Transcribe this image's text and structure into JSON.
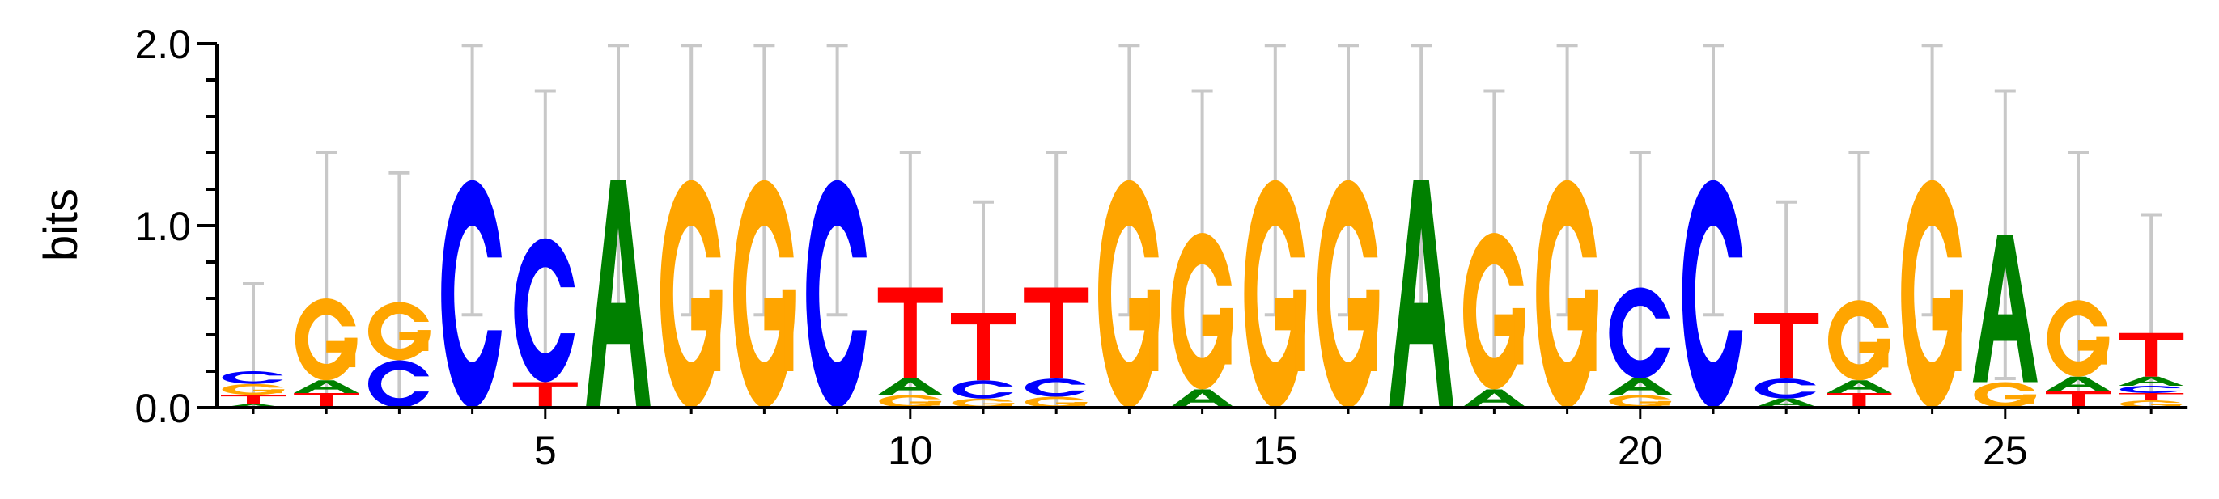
{
  "chart_data": {
    "type": "sequence_logo",
    "title": "",
    "xlabel": "",
    "ylabel": "bits",
    "ylim": [
      0,
      2.0
    ],
    "y_ticks": [
      "0.0",
      "1.0",
      "2.0"
    ],
    "x_ticks": [
      5,
      10,
      15,
      20,
      25
    ],
    "positions": [
      1,
      2,
      3,
      4,
      5,
      6,
      7,
      8,
      9,
      10,
      11,
      12,
      13,
      14,
      15,
      16,
      17,
      18,
      19,
      20,
      21,
      22,
      23,
      24,
      25,
      26,
      27
    ],
    "letter_colors": {
      "A": "#008000",
      "C": "#0000ff",
      "G": "#ffa500",
      "T": "#ff0000"
    },
    "errorbar_color": "#c8c8c8",
    "columns": [
      {
        "position": 1,
        "letters": [
          {
            "base": "A",
            "height": 0.02
          },
          {
            "base": "T",
            "height": 0.05
          },
          {
            "base": "G",
            "height": 0.06
          },
          {
            "base": "C",
            "height": 0.07
          }
        ],
        "error_top": 0.68
      },
      {
        "position": 2,
        "letters": [
          {
            "base": "T",
            "height": 0.08
          },
          {
            "base": "A",
            "height": 0.07
          },
          {
            "base": "G",
            "height": 0.45
          }
        ],
        "error_top": 1.4
      },
      {
        "position": 3,
        "letters": [
          {
            "base": "C",
            "height": 0.26
          },
          {
            "base": "G",
            "height": 0.32
          }
        ],
        "error_top": 1.29
      },
      {
        "position": 4,
        "letters": [
          {
            "base": "C",
            "height": 1.25
          }
        ],
        "error_top": 1.99
      },
      {
        "position": 5,
        "letters": [
          {
            "base": "T",
            "height": 0.14
          },
          {
            "base": "C",
            "height": 0.79
          }
        ],
        "error_top": 1.74
      },
      {
        "position": 6,
        "letters": [
          {
            "base": "A",
            "height": 1.25
          }
        ],
        "error_top": 1.99
      },
      {
        "position": 7,
        "letters": [
          {
            "base": "G",
            "height": 1.25
          }
        ],
        "error_top": 1.99
      },
      {
        "position": 8,
        "letters": [
          {
            "base": "G",
            "height": 1.25
          }
        ],
        "error_top": 1.99
      },
      {
        "position": 9,
        "letters": [
          {
            "base": "C",
            "height": 1.25
          }
        ],
        "error_top": 1.99
      },
      {
        "position": 10,
        "letters": [
          {
            "base": "G",
            "height": 0.07
          },
          {
            "base": "A",
            "height": 0.09
          },
          {
            "base": "T",
            "height": 0.5
          }
        ],
        "error_top": 1.4
      },
      {
        "position": 11,
        "letters": [
          {
            "base": "G",
            "height": 0.05
          },
          {
            "base": "C",
            "height": 0.1
          },
          {
            "base": "T",
            "height": 0.37
          }
        ],
        "error_top": 1.13
      },
      {
        "position": 12,
        "letters": [
          {
            "base": "G",
            "height": 0.06
          },
          {
            "base": "C",
            "height": 0.1
          },
          {
            "base": "T",
            "height": 0.5
          }
        ],
        "error_top": 1.4
      },
      {
        "position": 13,
        "letters": [
          {
            "base": "G",
            "height": 1.25
          }
        ],
        "error_top": 1.99
      },
      {
        "position": 14,
        "letters": [
          {
            "base": "A",
            "height": 0.1
          },
          {
            "base": "G",
            "height": 0.86
          }
        ],
        "error_top": 1.74
      },
      {
        "position": 15,
        "letters": [
          {
            "base": "G",
            "height": 1.25
          }
        ],
        "error_top": 1.99
      },
      {
        "position": 16,
        "letters": [
          {
            "base": "G",
            "height": 1.25
          }
        ],
        "error_top": 1.99
      },
      {
        "position": 17,
        "letters": [
          {
            "base": "A",
            "height": 1.25
          }
        ],
        "error_top": 1.99
      },
      {
        "position": 18,
        "letters": [
          {
            "base": "A",
            "height": 0.1
          },
          {
            "base": "G",
            "height": 0.86
          }
        ],
        "error_top": 1.74
      },
      {
        "position": 19,
        "letters": [
          {
            "base": "G",
            "height": 1.25
          }
        ],
        "error_top": 1.99
      },
      {
        "position": 20,
        "letters": [
          {
            "base": "G",
            "height": 0.07
          },
          {
            "base": "A",
            "height": 0.09
          },
          {
            "base": "C",
            "height": 0.5
          }
        ],
        "error_top": 1.4
      },
      {
        "position": 21,
        "letters": [
          {
            "base": "C",
            "height": 1.25
          }
        ],
        "error_top": 1.99
      },
      {
        "position": 22,
        "letters": [
          {
            "base": "A",
            "height": 0.05
          },
          {
            "base": "C",
            "height": 0.11
          },
          {
            "base": "T",
            "height": 0.36
          }
        ],
        "error_top": 1.13
      },
      {
        "position": 23,
        "letters": [
          {
            "base": "T",
            "height": 0.08
          },
          {
            "base": "A",
            "height": 0.07
          },
          {
            "base": "G",
            "height": 0.44
          }
        ],
        "error_top": 1.4
      },
      {
        "position": 24,
        "letters": [
          {
            "base": "G",
            "height": 1.25
          }
        ],
        "error_top": 1.99
      },
      {
        "position": 25,
        "letters": [
          {
            "base": "G",
            "height": 0.14
          },
          {
            "base": "A",
            "height": 0.81
          }
        ],
        "error_top": 1.74
      },
      {
        "position": 26,
        "letters": [
          {
            "base": "T",
            "height": 0.09
          },
          {
            "base": "A",
            "height": 0.08
          },
          {
            "base": "G",
            "height": 0.42
          }
        ],
        "error_top": 1.4
      },
      {
        "position": 27,
        "letters": [
          {
            "base": "G",
            "height": 0.04
          },
          {
            "base": "T",
            "height": 0.04
          },
          {
            "base": "C",
            "height": 0.04
          },
          {
            "base": "A",
            "height": 0.05
          },
          {
            "base": "T",
            "height": 0.24
          }
        ],
        "error_top": 1.06
      }
    ]
  }
}
